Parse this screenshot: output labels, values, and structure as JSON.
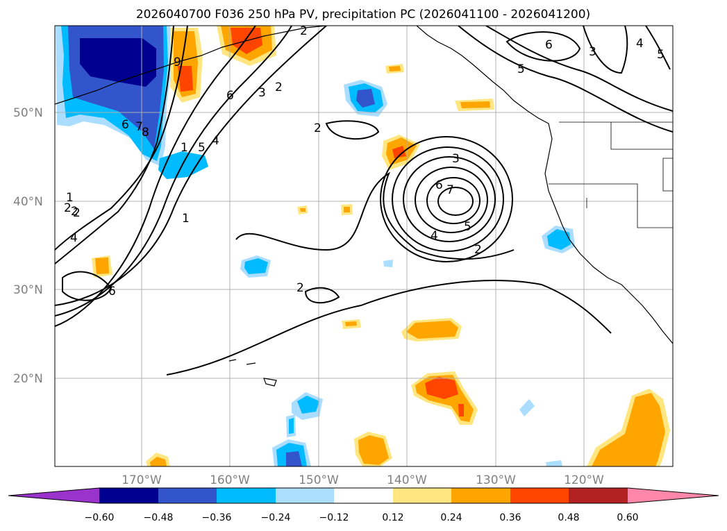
{
  "title": "2026040700 F036 250 hPa PV, precipitation PC (2026041100 - 2026041200)",
  "lat_labels": [
    "50°N",
    "40°N",
    "30°N",
    "20°N"
  ],
  "lon_labels": [
    "170°W",
    "160°W",
    "150°W",
    "140°W",
    "130°W",
    "120°W"
  ],
  "colorbar": {
    "colors": [
      "#9933cc",
      "#000090",
      "#3355cc",
      "#00bbff",
      "#aaddff",
      "#ffffff",
      "#ffe680",
      "#ffa500",
      "#ff4500",
      "#b22222",
      "#ff88aa"
    ],
    "labels": [
      "−0.60",
      "−0.48",
      "−0.36",
      "−0.24",
      "−0.12",
      "0.12",
      "0.24",
      "0.36",
      "0.48",
      "0.60"
    ]
  },
  "contour_labels": [
    "1",
    "2",
    "3",
    "4",
    "5",
    "6",
    "2",
    "2",
    "2",
    "3",
    "4",
    "5",
    "6",
    "7",
    "2",
    "2",
    "2",
    "3",
    "4",
    "5",
    "6",
    "1",
    "1",
    "2",
    "4",
    "6",
    "5",
    "6",
    "7",
    "8",
    "9"
  ]
}
